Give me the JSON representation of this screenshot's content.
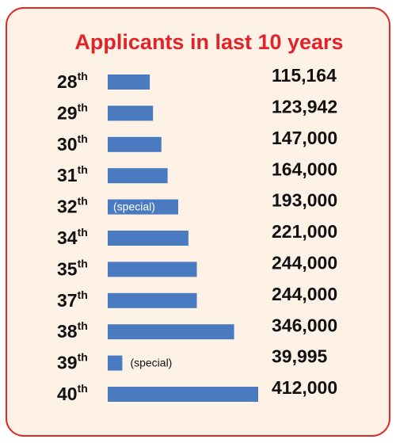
{
  "chart_data": {
    "type": "bar",
    "orientation": "horizontal",
    "title": "Applicants in last 10 years",
    "categories": [
      "28",
      "29",
      "30",
      "31",
      "32",
      "34",
      "35",
      "37",
      "38",
      "39",
      "40"
    ],
    "category_suffix": "th",
    "values": [
      115164,
      123942,
      147000,
      164000,
      193000,
      221000,
      244000,
      244000,
      346000,
      39995,
      412000
    ],
    "value_labels": [
      "115,164",
      "123,942",
      "147,000",
      "164,000",
      "193,000",
      "221,000",
      "244,000",
      "244,000",
      "346,000",
      "39,995",
      "412,000"
    ],
    "bar_notes": [
      null,
      null,
      null,
      null,
      "(special)",
      null,
      null,
      null,
      null,
      "(special)",
      null
    ],
    "color": "#4a7bc1"
  }
}
